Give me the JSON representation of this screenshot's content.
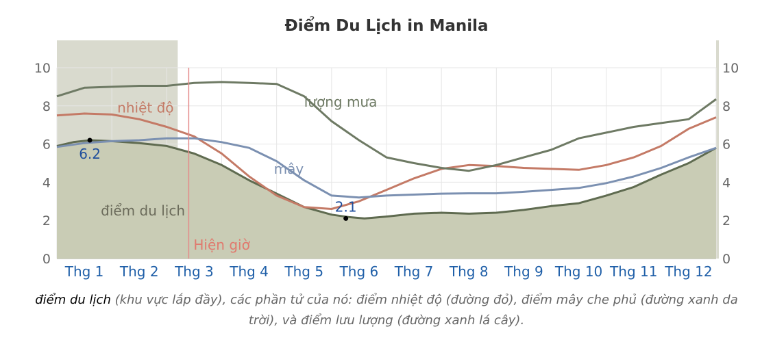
{
  "chart_data": {
    "type": "line",
    "title": "Điểm Du Lịch in Manila",
    "months": [
      "Thg 1",
      "Thg 2",
      "Thg 3",
      "Thg 4",
      "Thg 5",
      "Thg 6",
      "Thg 7",
      "Thg 8",
      "Thg 9",
      "Thg 10",
      "Thg 11",
      "Thg 12"
    ],
    "ylim": [
      0,
      10
    ],
    "y_ticks": [
      "0",
      "2",
      "4",
      "6",
      "8",
      "10"
    ],
    "x_domain": [
      0,
      12
    ],
    "series": [
      {
        "name": "điểm du lịch",
        "style": "area",
        "color": "#5f6b50",
        "fill": "#c9ccb5",
        "points": [
          [
            0,
            5.9
          ],
          [
            0.3,
            6.1
          ],
          [
            0.6,
            6.2
          ],
          [
            1.0,
            6.15
          ],
          [
            1.5,
            6.05
          ],
          [
            2.0,
            5.9
          ],
          [
            2.5,
            5.5
          ],
          [
            3.0,
            4.9
          ],
          [
            3.5,
            4.1
          ],
          [
            4.0,
            3.4
          ],
          [
            4.5,
            2.7
          ],
          [
            5.0,
            2.3
          ],
          [
            5.3,
            2.18
          ],
          [
            5.6,
            2.1
          ],
          [
            6.0,
            2.2
          ],
          [
            6.5,
            2.35
          ],
          [
            7.0,
            2.4
          ],
          [
            7.5,
            2.35
          ],
          [
            8.0,
            2.4
          ],
          [
            8.5,
            2.55
          ],
          [
            9.0,
            2.75
          ],
          [
            9.5,
            2.9
          ],
          [
            10.0,
            3.3
          ],
          [
            10.5,
            3.75
          ],
          [
            11.0,
            4.4
          ],
          [
            11.5,
            5.0
          ],
          [
            12.0,
            5.8
          ]
        ]
      },
      {
        "name": "nhiệt độ",
        "style": "line",
        "color": "#c47a66",
        "points": [
          [
            0,
            7.5
          ],
          [
            0.5,
            7.6
          ],
          [
            1.0,
            7.55
          ],
          [
            1.5,
            7.3
          ],
          [
            2.0,
            6.9
          ],
          [
            2.5,
            6.4
          ],
          [
            3.0,
            5.5
          ],
          [
            3.5,
            4.3
          ],
          [
            4.0,
            3.3
          ],
          [
            4.5,
            2.7
          ],
          [
            5.0,
            2.6
          ],
          [
            5.5,
            3.0
          ],
          [
            6.0,
            3.6
          ],
          [
            6.5,
            4.2
          ],
          [
            7.0,
            4.7
          ],
          [
            7.5,
            4.9
          ],
          [
            8.0,
            4.85
          ],
          [
            8.5,
            4.75
          ],
          [
            9.0,
            4.7
          ],
          [
            9.5,
            4.65
          ],
          [
            10.0,
            4.9
          ],
          [
            10.5,
            5.3
          ],
          [
            11.0,
            5.9
          ],
          [
            11.5,
            6.8
          ],
          [
            12.0,
            7.4
          ]
        ]
      },
      {
        "name": "mây",
        "style": "line",
        "color": "#7b90b1",
        "points": [
          [
            0,
            5.85
          ],
          [
            0.5,
            6.05
          ],
          [
            1.0,
            6.15
          ],
          [
            1.5,
            6.2
          ],
          [
            2.0,
            6.3
          ],
          [
            2.5,
            6.3
          ],
          [
            3.0,
            6.1
          ],
          [
            3.5,
            5.8
          ],
          [
            4.0,
            5.1
          ],
          [
            4.5,
            4.1
          ],
          [
            5.0,
            3.3
          ],
          [
            5.5,
            3.2
          ],
          [
            6.0,
            3.3
          ],
          [
            6.5,
            3.35
          ],
          [
            7.0,
            3.4
          ],
          [
            7.5,
            3.42
          ],
          [
            8.0,
            3.42
          ],
          [
            8.5,
            3.5
          ],
          [
            9.0,
            3.6
          ],
          [
            9.5,
            3.7
          ],
          [
            10.0,
            3.95
          ],
          [
            10.5,
            4.3
          ],
          [
            11.0,
            4.75
          ],
          [
            11.5,
            5.3
          ],
          [
            12.0,
            5.8
          ]
        ]
      },
      {
        "name": "lượng mưa",
        "style": "line",
        "color": "#6e7a64",
        "points": [
          [
            0,
            8.5
          ],
          [
            0.5,
            8.95
          ],
          [
            1.0,
            9.0
          ],
          [
            1.5,
            9.05
          ],
          [
            2.0,
            9.05
          ],
          [
            2.5,
            9.2
          ],
          [
            3.0,
            9.25
          ],
          [
            3.5,
            9.2
          ],
          [
            4.0,
            9.15
          ],
          [
            4.5,
            8.5
          ],
          [
            5.0,
            7.2
          ],
          [
            5.5,
            6.2
          ],
          [
            6.0,
            5.3
          ],
          [
            6.5,
            5.0
          ],
          [
            7.0,
            4.75
          ],
          [
            7.5,
            4.6
          ],
          [
            8.0,
            4.9
          ],
          [
            8.5,
            5.3
          ],
          [
            9.0,
            5.7
          ],
          [
            9.5,
            6.3
          ],
          [
            10.0,
            6.6
          ],
          [
            10.5,
            6.9
          ],
          [
            11.0,
            7.1
          ],
          [
            11.5,
            7.3
          ],
          [
            12.0,
            8.35
          ]
        ]
      }
    ],
    "annotations": {
      "max_label": "6.2",
      "min_label": "2.1",
      "max_point": [
        0.6,
        6.2
      ],
      "min_point": [
        5.26,
        2.1
      ],
      "now_label": "Hiện giờ",
      "now_x": 2.4,
      "highlight_ranges": [
        [
          0,
          2.2
        ],
        [
          12,
          12.3
        ]
      ]
    },
    "colors": {
      "grid": "#e6e6e6",
      "month_label": "#1f5fa8",
      "axis_label": "#666666",
      "highlight": "#d9dace",
      "now_line": "#e48a8a",
      "marker_label": "#1f4e9c"
    }
  },
  "caption": {
    "lead": "điểm du lịch",
    "rest": " (khu vực lắp đầy), các phần tử của nó: điểm nhiệt độ (đường đỏ), điểm mây che phủ (đường xanh da trời), và điểm lưu lượng (đường xanh lá cây)."
  }
}
